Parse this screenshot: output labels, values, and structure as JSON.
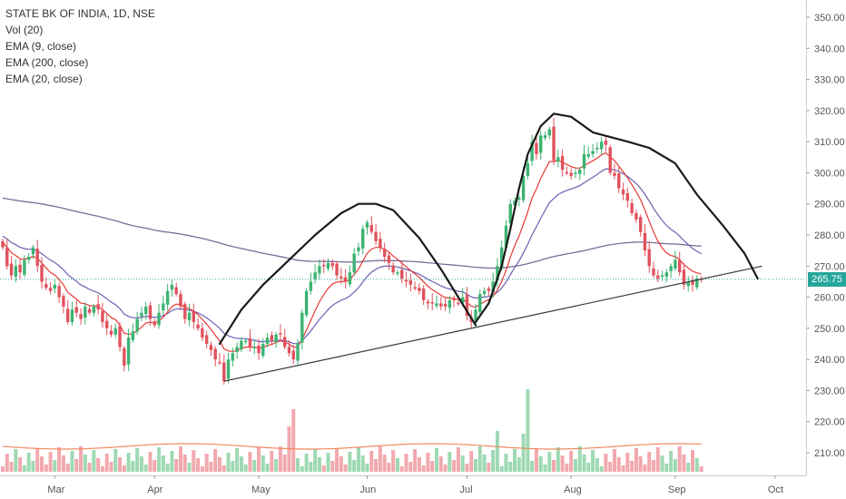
{
  "legend": {
    "title": "STATE BK OF INDIA, 1D, NSE",
    "indicators": [
      "Vol (20)",
      "EMA (9, close)",
      "EMA (200, close)",
      "EMA (20, close)"
    ]
  },
  "last_price_label": "265.75",
  "colors": {
    "up": "#3cb371",
    "down": "#e0525c",
    "ema9": "#e53935",
    "ema20": "#6d5fb3",
    "ema200": "#7a6c9a",
    "price_line": "#26a69a",
    "volume_ma": "#f08a5d",
    "vol_up": "#9ed9b3",
    "vol_down": "#f2a9ae",
    "drawing": "#1a1a1a"
  },
  "chart_data": {
    "type": "candlestick",
    "title": "STATE BK OF INDIA, 1D, NSE",
    "ylim": [
      200,
      355
    ],
    "y_ticks": [
      "350.00",
      "340.00",
      "330.00",
      "320.00",
      "310.00",
      "300.00",
      "290.00",
      "280.00",
      "270.00",
      "260.00",
      "250.00",
      "240.00",
      "230.00",
      "220.00",
      "210.00"
    ],
    "x_ticks": [
      "Mar",
      "Apr",
      "May",
      "Jun",
      "Jul",
      "Aug",
      "Sep",
      "Oct"
    ],
    "x_tick_index": [
      12,
      35,
      59,
      84,
      107,
      131,
      155,
      178
    ],
    "last_price": 265.75,
    "closes": [
      276,
      270,
      267,
      270,
      268,
      272,
      273,
      276,
      270,
      265,
      263,
      262,
      264,
      260,
      257,
      252,
      256,
      255,
      253,
      257,
      255,
      257,
      256,
      252,
      250,
      248,
      250,
      244,
      238,
      247,
      249,
      253,
      255,
      257,
      253,
      251,
      255,
      258,
      262,
      264,
      261,
      257,
      253,
      255,
      252,
      250,
      247,
      245,
      243,
      240,
      239,
      233,
      240,
      242,
      244,
      246,
      246,
      244,
      244,
      242,
      245,
      247,
      246,
      248,
      248,
      244,
      242,
      240,
      245,
      255,
      262,
      265,
      268,
      270,
      270,
      271,
      270,
      267,
      266,
      265,
      268,
      274,
      276,
      282,
      284,
      281,
      278,
      276,
      273,
      271,
      268,
      268,
      266,
      265,
      264,
      263,
      262,
      259,
      258,
      258,
      258,
      257,
      257,
      259,
      259,
      258,
      260,
      254,
      252,
      256,
      261,
      262,
      262,
      265,
      270,
      276,
      283,
      290,
      291,
      292,
      299,
      303,
      310,
      306,
      312,
      312,
      314,
      304,
      305,
      301,
      300,
      299,
      300,
      301,
      306,
      306,
      307,
      308,
      310,
      309,
      300,
      299,
      295,
      293,
      291,
      287,
      285,
      281,
      275,
      270,
      267,
      266,
      267,
      268,
      270,
      272,
      268,
      264,
      265,
      264,
      266,
      265.75
    ],
    "volume_ma20_level": 212.5
  }
}
